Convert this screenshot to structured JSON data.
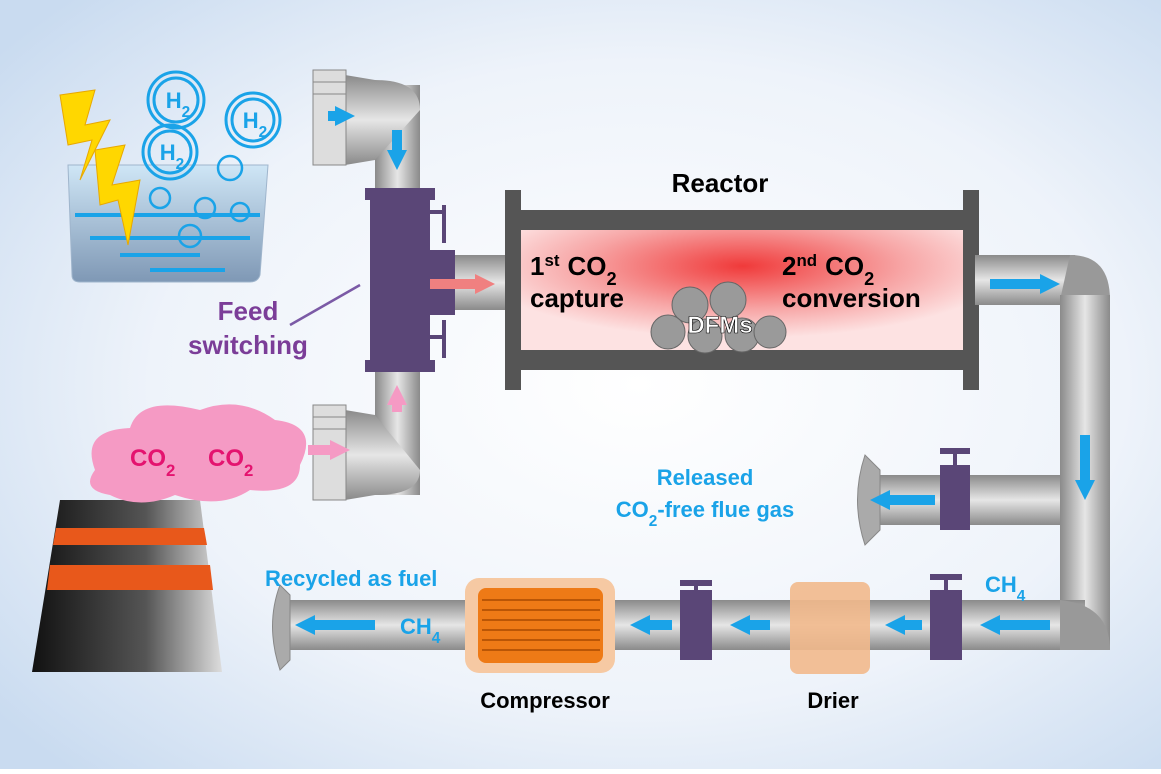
{
  "h2_bubbles": [
    [
      "H",
      "2"
    ],
    [
      "H",
      "2"
    ],
    [
      "H",
      "2"
    ]
  ],
  "reactor": {
    "title": "Reactor",
    "first_stage": {
      "line1": [
        "1",
        "st",
        "CO",
        "2"
      ],
      "line2": "capture"
    },
    "second_stage": {
      "line1": [
        "2",
        "nd",
        "CO",
        "2"
      ],
      "line2": "conversion"
    },
    "material": "DFMs"
  },
  "feed_switching": [
    "Feed",
    "switching"
  ],
  "emissions": [
    [
      "CO",
      "2"
    ],
    [
      "CO",
      "2"
    ]
  ],
  "flue_gas": {
    "line1": "Released",
    "line2": [
      "CO",
      "2",
      "-free flue gas"
    ]
  },
  "recycle": {
    "label": "Recycled as fuel",
    "product": [
      "CH",
      "4"
    ],
    "product_outlet": [
      "CH",
      "4"
    ]
  },
  "units": {
    "compressor": "Compressor",
    "drier": "Drier"
  }
}
